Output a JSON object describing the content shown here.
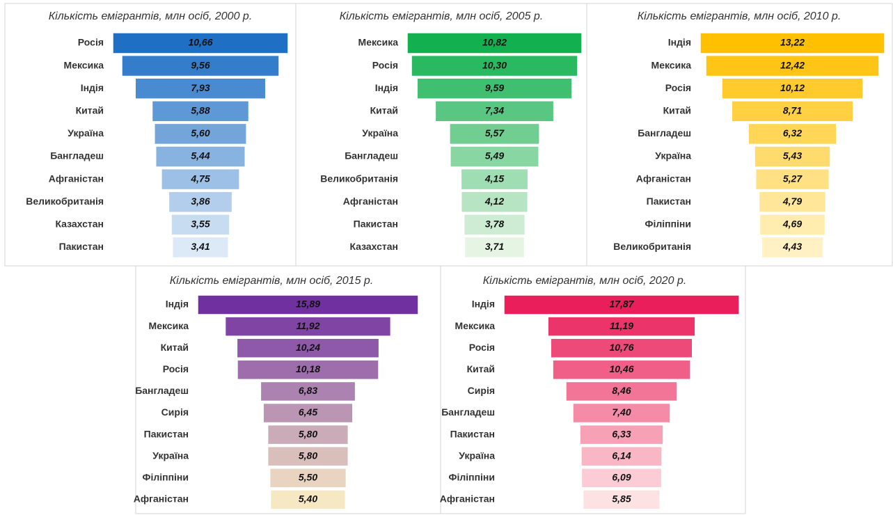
{
  "chart_data": [
    {
      "type": "funnel",
      "title": "Кількість емігрантів, млн осіб, 2000 р.",
      "categories": [
        "Росія",
        "Мексика",
        "Індія",
        "Китай",
        "Україна",
        "Бангладеш",
        "Афганістан",
        "Великобританія",
        "Казахстан",
        "Пакистан"
      ],
      "values": [
        10.66,
        9.56,
        7.93,
        5.88,
        5.6,
        5.44,
        4.75,
        3.86,
        3.55,
        3.41
      ],
      "value_labels": [
        "10,66",
        "9,56",
        "7,93",
        "5,88",
        "5,60",
        "5,44",
        "4,75",
        "3,86",
        "3,55",
        "3,41"
      ],
      "colors": [
        "#1f6fc5",
        "#dce9f7"
      ]
    },
    {
      "type": "funnel",
      "title": "Кількість емігрантів, млн осіб, 2005 р.",
      "categories": [
        "Мексика",
        "Росія",
        "Індія",
        "Китай",
        "Україна",
        "Бангладеш",
        "Великобританія",
        "Афганістан",
        "Пакистан",
        "Казахстан"
      ],
      "values": [
        10.82,
        10.3,
        9.59,
        7.34,
        5.57,
        5.49,
        4.15,
        4.12,
        3.78,
        3.71
      ],
      "value_labels": [
        "10,82",
        "10,30",
        "9,59",
        "7,34",
        "5,57",
        "5,49",
        "4,15",
        "4,12",
        "3,78",
        "3,71"
      ],
      "colors": [
        "#12b04f",
        "#e6f4e4"
      ]
    },
    {
      "type": "funnel",
      "title": "Кількість емігрантів, млн осіб, 2010 р.",
      "categories": [
        "Індія",
        "Мексика",
        "Росія",
        "Китай",
        "Бангладеш",
        "Україна",
        "Афганістан",
        "Пакистан",
        "Філіппіни",
        "Великобританія"
      ],
      "values": [
        13.22,
        12.42,
        10.12,
        8.71,
        6.32,
        5.43,
        5.27,
        4.79,
        4.69,
        4.43
      ],
      "value_labels": [
        "13,22",
        "12,42",
        "10,12",
        "8,71",
        "6,32",
        "5,43",
        "5,27",
        "4,79",
        "4,69",
        "4,43"
      ],
      "colors": [
        "#ffc000",
        "#fff1c4"
      ]
    },
    {
      "type": "funnel",
      "title": "Кількість емігрантів, млн осіб, 2015 р.",
      "categories": [
        "Індія",
        "Мексика",
        "Китай",
        "Росія",
        "Бангладеш",
        "Сирія",
        "Пакистан",
        "Україна",
        "Філіппіни",
        "Афганістан"
      ],
      "values": [
        15.89,
        11.92,
        10.24,
        10.18,
        6.83,
        6.45,
        5.8,
        5.8,
        5.5,
        5.4
      ],
      "value_labels": [
        "15,89",
        "11,92",
        "10,24",
        "10,18",
        "6,83",
        "6,45",
        "5,80",
        "5,80",
        "5,50",
        "5,40"
      ],
      "colors": [
        "#7030a0",
        "#f7e8c4"
      ]
    },
    {
      "type": "funnel",
      "title": "Кількість емігрантів, млн осіб, 2020 р.",
      "categories": [
        "Індія",
        "Мексика",
        "Росія",
        "Китай",
        "Сирія",
        "Бангладеш",
        "Пакистан",
        "Україна",
        "Філіппіни",
        "Афганістан"
      ],
      "values": [
        17.87,
        11.19,
        10.76,
        10.46,
        8.46,
        7.4,
        6.33,
        6.14,
        6.09,
        5.85
      ],
      "value_labels": [
        "17,87",
        "11,19",
        "10,76",
        "10,46",
        "8,46",
        "7,40",
        "6,33",
        "6,14",
        "6,09",
        "5,85"
      ],
      "colors": [
        "#e91e5a",
        "#fde2e4"
      ]
    }
  ]
}
